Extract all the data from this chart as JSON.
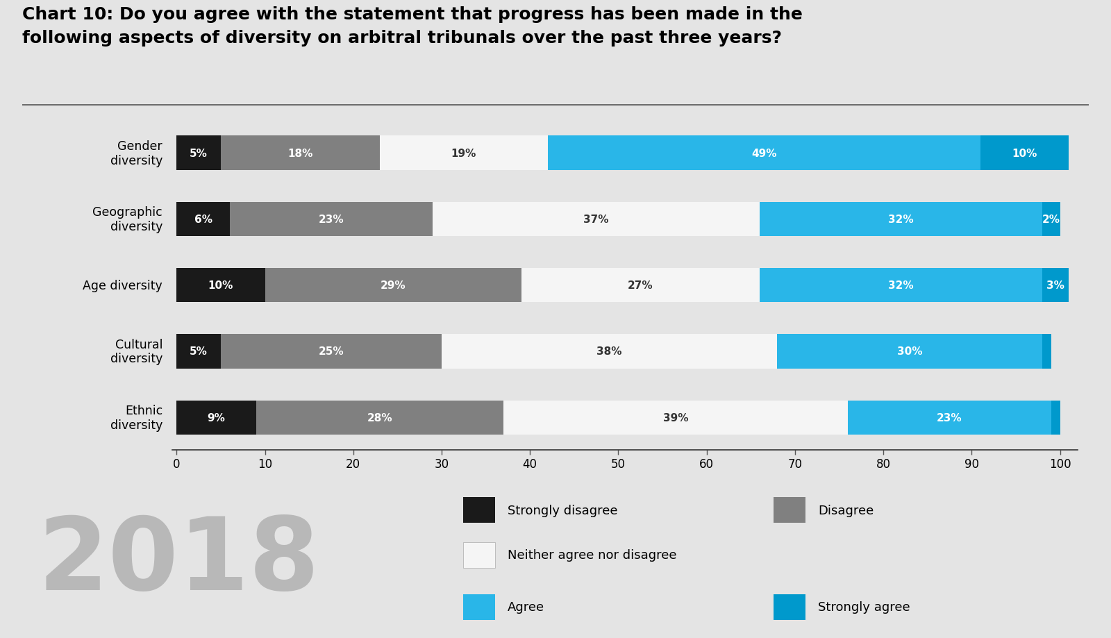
{
  "title_line1": "Chart 10: Do you agree with the statement that progress has been made in the",
  "title_line2": "following aspects of diversity on arbitral tribunals over the past three years?",
  "year_label": "2018",
  "categories": [
    "Gender\ndiversity",
    "Geographic\ndiversity",
    "Age diversity",
    "Cultural\ndiversity",
    "Ethnic\ndiversity"
  ],
  "segments": {
    "strongly_disagree": [
      5,
      6,
      10,
      5,
      9
    ],
    "disagree": [
      18,
      23,
      29,
      25,
      28
    ],
    "neither": [
      19,
      37,
      27,
      38,
      39
    ],
    "agree": [
      49,
      32,
      32,
      30,
      23
    ],
    "strongly_agree": [
      10,
      2,
      3,
      1,
      1
    ]
  },
  "colors": {
    "strongly_disagree": "#1a1a1a",
    "disagree": "#808080",
    "neither": "#f5f5f5",
    "agree": "#29b6e8",
    "strongly_agree": "#0099cc"
  },
  "background_color": "#e4e4e4",
  "xlim": [
    0,
    100
  ],
  "xlabel_ticks": [
    0,
    10,
    20,
    30,
    40,
    50,
    60,
    70,
    80,
    90,
    100
  ],
  "legend_rows": [
    [
      [
        "strongly_disagree",
        "Strongly disagree"
      ],
      [
        "disagree",
        "Disagree"
      ]
    ],
    [
      [
        "neither",
        "Neither agree nor disagree"
      ]
    ],
    [
      [
        "agree",
        "Agree"
      ],
      [
        "strongly_agree",
        "Strongly agree"
      ]
    ]
  ]
}
